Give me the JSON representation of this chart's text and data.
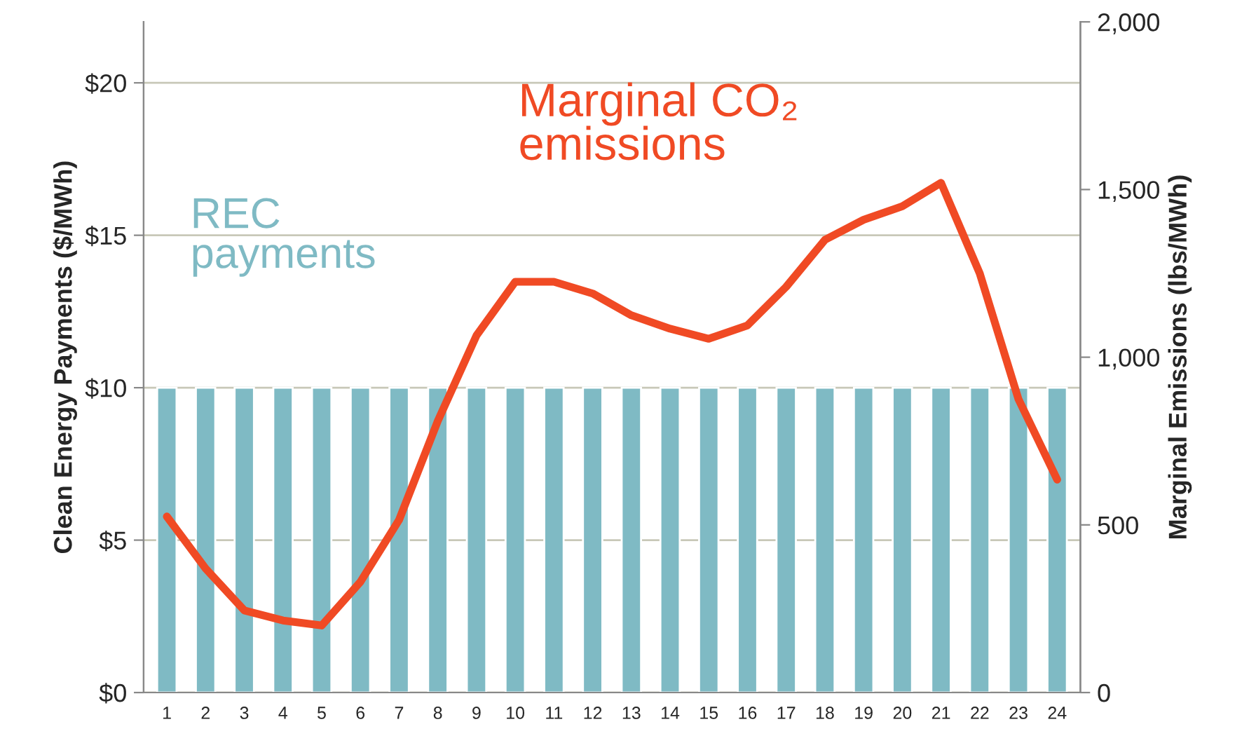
{
  "chart_data": {
    "type": "bar",
    "ylabel": "Clean Energy Payments ($/MWh)",
    "y2label": "Marginal Emissions (lbs/MWh)",
    "categories": [
      "1",
      "2",
      "3",
      "4",
      "5",
      "6",
      "7",
      "8",
      "9",
      "10",
      "11",
      "12",
      "13",
      "14",
      "15",
      "16",
      "17",
      "18",
      "19",
      "20",
      "21",
      "22",
      "23",
      "24"
    ],
    "series": [
      {
        "name": "REC payments",
        "color": "#7fbac4",
        "values": [
          10,
          10,
          10,
          10,
          10,
          10,
          10,
          10,
          10,
          10,
          10,
          10,
          10,
          10,
          10,
          10,
          10,
          10,
          10,
          10,
          10,
          10,
          10,
          10
        ]
      },
      {
        "name": "Marginal CO₂ emissions",
        "type": "line",
        "axis": "y2",
        "color": "#f04a24",
        "values": [
          525,
          370,
          245,
          215,
          200,
          330,
          515,
          810,
          1065,
          1225,
          1225,
          1190,
          1125,
          1085,
          1055,
          1095,
          1210,
          1350,
          1410,
          1450,
          1520,
          1250,
          875,
          635
        ]
      }
    ],
    "ylim": [
      0,
      22
    ],
    "yticks": [
      {
        "value": 0,
        "label": "$0"
      },
      {
        "value": 5,
        "label": "$5"
      },
      {
        "value": 10,
        "label": "$10"
      },
      {
        "value": 15,
        "label": "$15"
      },
      {
        "value": 20,
        "label": "$20"
      }
    ],
    "y2lim": [
      0,
      2000
    ],
    "y2ticks": [
      0,
      500,
      {
        "value": 1000,
        "label": "1,000"
      },
      {
        "value": 1500,
        "label": "1,500"
      },
      {
        "value": 2000,
        "label": "2,000"
      }
    ],
    "grid": "y",
    "line_style": "solid",
    "marker": "none"
  }
}
